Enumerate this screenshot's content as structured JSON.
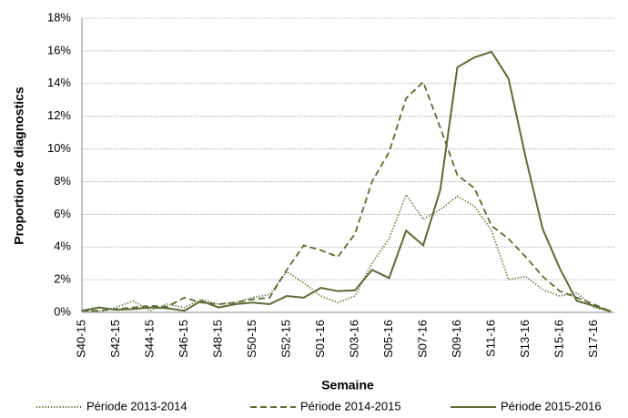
{
  "chart_data": {
    "type": "line",
    "y_label": "Proportion de diagnostics",
    "x_label": "Semaine",
    "categories": [
      "S40-15",
      null,
      "S42-15",
      null,
      "S44-15",
      null,
      "S46-15",
      null,
      "S48-15",
      null,
      "S50-15",
      null,
      "S52-15",
      null,
      "S01-16",
      null,
      "S03-16",
      null,
      "S05-16",
      null,
      "S07-16",
      null,
      "S09-16",
      null,
      "S11-16",
      null,
      "S13-16",
      null,
      "S15-16",
      null,
      "S17-16",
      null
    ],
    "series": [
      {
        "name": "Période 2013-2014",
        "color": "#5b6b34",
        "line_style": "dotted",
        "values": [
          0.1,
          0.05,
          0.3,
          0.7,
          0.1,
          0.5,
          0.3,
          0.8,
          0.5,
          0.6,
          0.9,
          1.1,
          2.5,
          1.8,
          1.0,
          0.6,
          1.0,
          3.0,
          4.5,
          7.2,
          5.7,
          6.3,
          7.1,
          6.5,
          5.0,
          2.0,
          2.2,
          1.4,
          1.0,
          1.2,
          0.3,
          0.05
        ]
      },
      {
        "name": "Période 2014-2015",
        "color": "#5b6b34",
        "line_style": "dashed",
        "values": [
          0.1,
          0.1,
          0.2,
          0.3,
          0.4,
          0.35,
          0.9,
          0.6,
          0.5,
          0.6,
          0.8,
          0.9,
          2.6,
          4.1,
          3.8,
          3.4,
          4.8,
          8.0,
          9.8,
          13.1,
          14.1,
          11.3,
          8.4,
          7.6,
          5.3,
          4.5,
          3.4,
          2.2,
          1.3,
          0.9,
          0.5,
          0.05
        ]
      },
      {
        "name": "Période 2015-2016",
        "color": "#5b6b34",
        "line_style": "solid",
        "values": [
          0.1,
          0.3,
          0.15,
          0.2,
          0.3,
          0.25,
          0.1,
          0.7,
          0.3,
          0.5,
          0.6,
          0.5,
          1.0,
          0.9,
          1.5,
          1.3,
          1.35,
          2.6,
          2.1,
          5.0,
          4.1,
          7.5,
          15.0,
          15.6,
          15.95,
          14.3,
          9.5,
          5.1,
          2.7,
          0.7,
          0.4,
          0.05
        ]
      }
    ],
    "ylim": [
      0,
      18
    ],
    "yticks": [
      {
        "value": 0,
        "label": "0%"
      },
      {
        "value": 2,
        "label": "2%"
      },
      {
        "value": 4,
        "label": "4%"
      },
      {
        "value": 6,
        "label": "6%"
      },
      {
        "value": 8,
        "label": "8%"
      },
      {
        "value": 10,
        "label": "10%"
      },
      {
        "value": 12,
        "label": "12%"
      },
      {
        "value": 14,
        "label": "14%"
      },
      {
        "value": 16,
        "label": "16%"
      },
      {
        "value": 18,
        "label": "18%"
      }
    ],
    "grid": true,
    "legend": "bottom"
  }
}
